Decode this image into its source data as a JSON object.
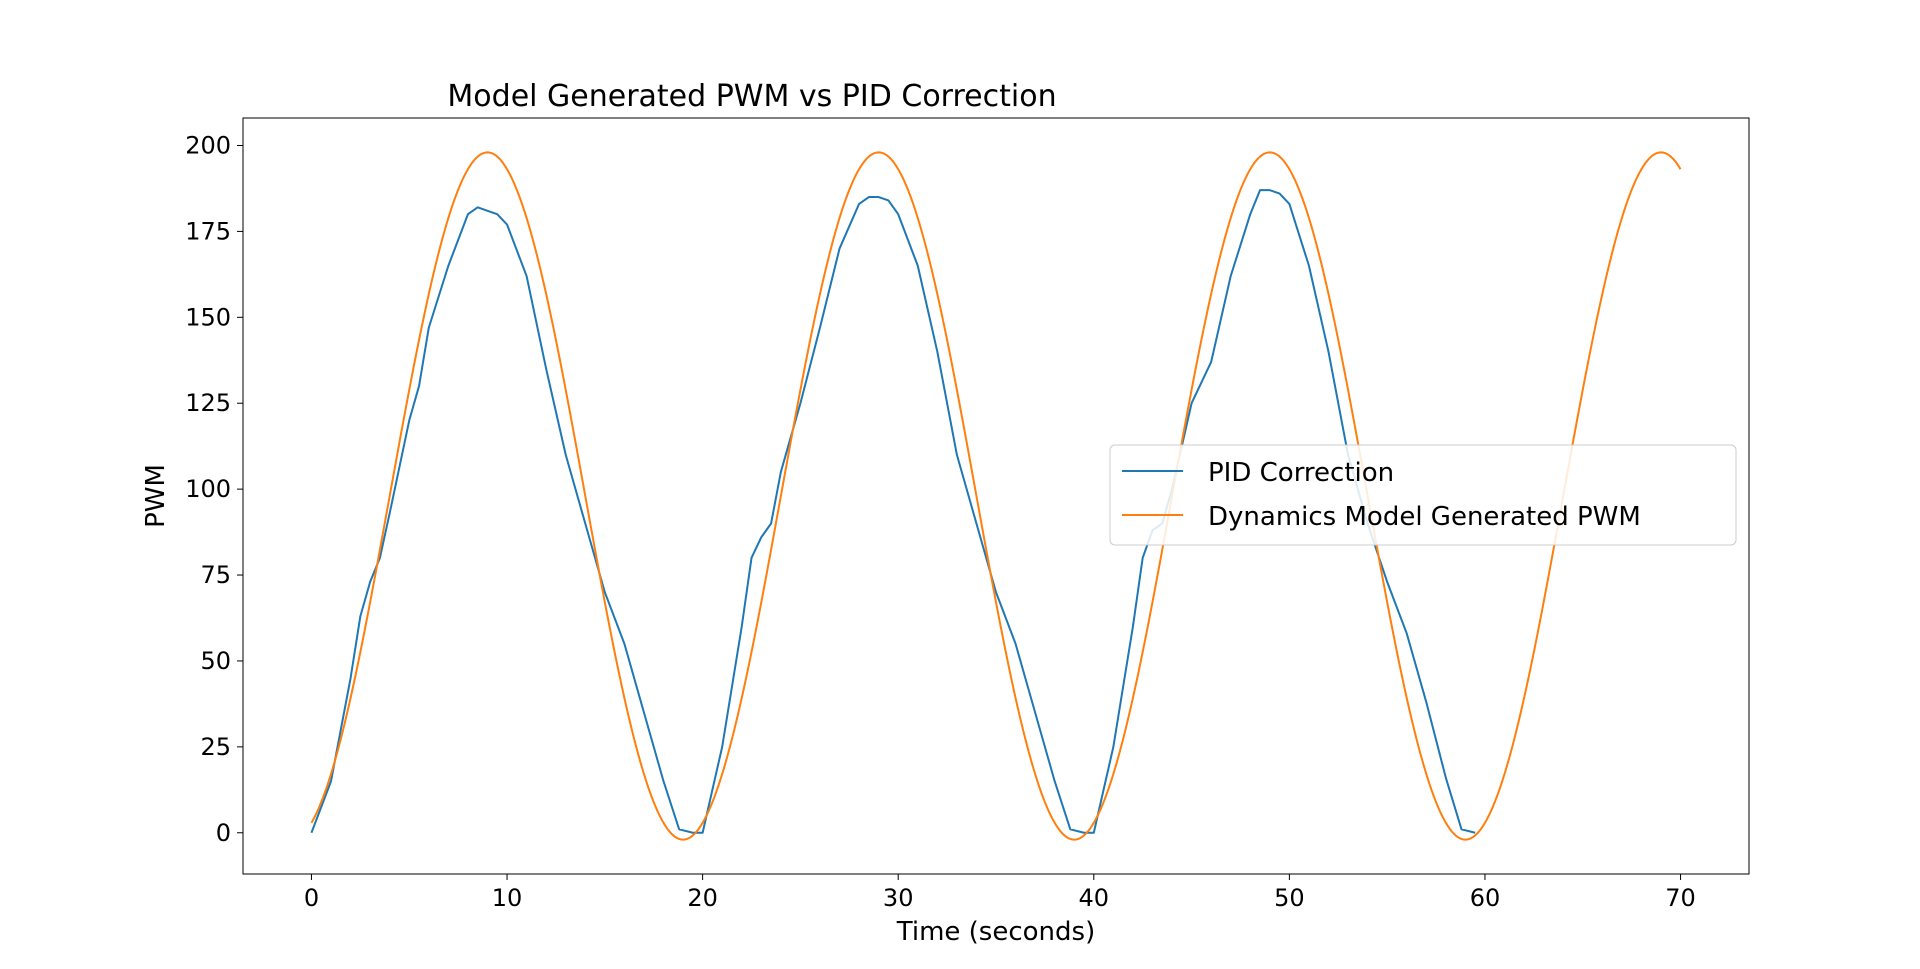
{
  "chart_data": {
    "type": "line",
    "title": "Model Generated PWM vs PID Correction",
    "xlabel": "Time (seconds)",
    "ylabel": "PWM",
    "xlim": [
      -3.5,
      73.5
    ],
    "ylim": [
      -12,
      208
    ],
    "xticks": [
      0,
      10,
      20,
      30,
      40,
      50,
      60,
      70
    ],
    "yticks": [
      0,
      25,
      50,
      75,
      100,
      125,
      150,
      175,
      200
    ],
    "grid": false,
    "legend_position": "center-right",
    "series": [
      {
        "name": "PID Correction",
        "color": "#1f77b4",
        "x": [
          0,
          1,
          2,
          2.5,
          3,
          3.5,
          4,
          5,
          5.5,
          6,
          7,
          8,
          8.5,
          9,
          9.5,
          10,
          11,
          12,
          13,
          14,
          15,
          16,
          17,
          18,
          18.8,
          19.5,
          20,
          21,
          22,
          22.5,
          23,
          23.5,
          24,
          25,
          26,
          27,
          28,
          28.5,
          29,
          29.5,
          30,
          31,
          32,
          33,
          34,
          35,
          36,
          37,
          38,
          38.8,
          39.5,
          40,
          41,
          42,
          42.5,
          43,
          43.5,
          44,
          45,
          46,
          47,
          48,
          48.5,
          49,
          49.5,
          50,
          51,
          52,
          53,
          54,
          55,
          56,
          57,
          58,
          58.8,
          59.5
        ],
        "y": [
          0,
          15,
          45,
          63,
          73,
          80,
          93,
          120,
          130,
          147,
          165,
          180,
          182,
          181,
          180,
          177,
          162,
          135,
          110,
          90,
          70,
          55,
          35,
          15,
          1,
          0,
          0,
          25,
          60,
          80,
          86,
          90,
          105,
          125,
          147,
          170,
          183,
          185,
          185,
          184,
          180,
          165,
          140,
          110,
          90,
          70,
          55,
          35,
          15,
          1,
          0,
          0,
          25,
          60,
          80,
          88,
          90,
          100,
          125,
          137,
          162,
          180,
          187,
          187,
          186,
          183,
          165,
          140,
          110,
          90,
          73,
          58,
          38,
          16,
          1,
          0
        ]
      },
      {
        "name": "Dynamics Model Generated PWM",
        "color": "#ff7f0e",
        "model": {
          "offset": 98,
          "amplitude": 100,
          "period": 20,
          "phase_shift": 4
        },
        "x_range": [
          0,
          70
        ]
      }
    ]
  }
}
